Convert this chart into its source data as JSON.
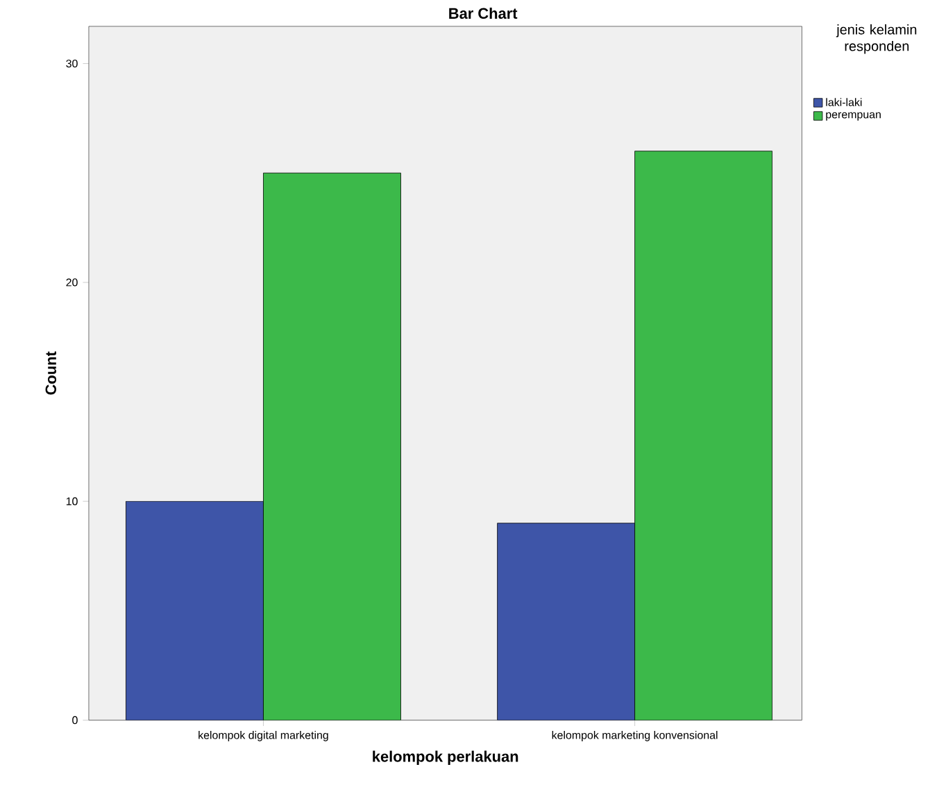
{
  "chart_data": {
    "type": "bar",
    "title": "Bar Chart",
    "xlabel": "kelompok perlakuan",
    "ylabel": "Count",
    "legend_title": "jenis kelamin responden",
    "categories": [
      "kelompok digital marketing",
      "kelompok marketing konvensional"
    ],
    "series": [
      {
        "name": "laki-laki",
        "color": "#3e55a8",
        "values": [
          10,
          9
        ]
      },
      {
        "name": "perempuan",
        "color": "#3cb94a",
        "values": [
          25,
          26
        ]
      }
    ],
    "ylim": [
      0,
      31.7
    ],
    "yticks": [
      0,
      10,
      20,
      30
    ],
    "grid": false,
    "legend": "right"
  }
}
